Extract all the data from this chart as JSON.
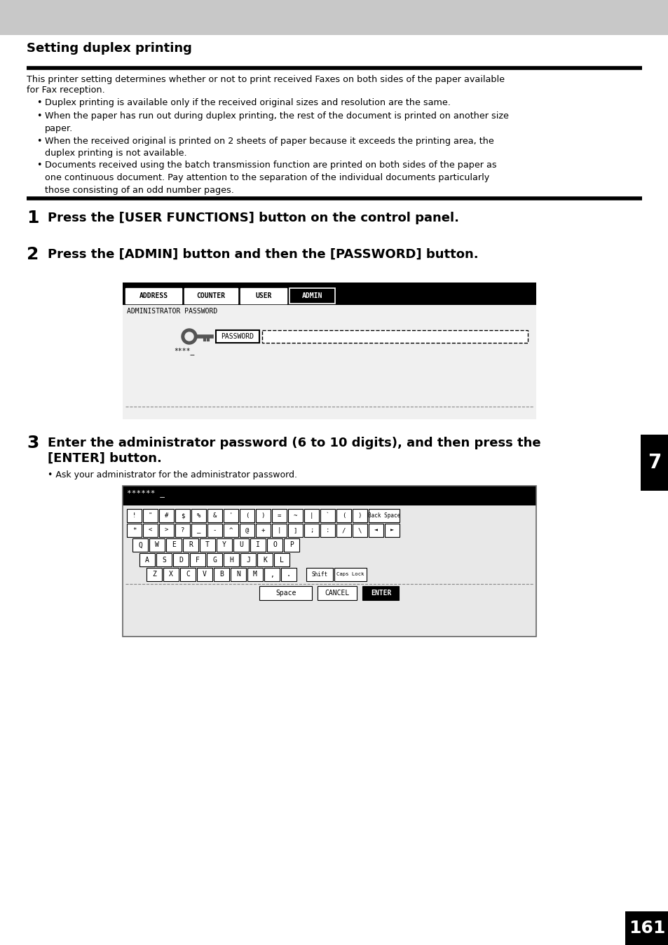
{
  "title": "Setting duplex printing",
  "bg_color": "#ffffff",
  "header_bar_color": "#c8c8c8",
  "body_text1": "This printer setting determines whether or not to print received Faxes on both sides of the paper available",
  "body_text2": "for Fax reception.",
  "bullets": [
    "Duplex printing is available only if the received original sizes and resolution are the same.",
    "When the paper has run out during duplex printing, the rest of the document is printed on another size paper.",
    "When the received original is printed on 2 sheets of paper because it exceeds the printing area, the duplex printing is not available.",
    "Documents received using the batch transmission function are printed on both sides of the paper as one continuous document. Pay attention to the separation of the individual documents particularly those consisting of an odd number pages."
  ],
  "step1_num": "1",
  "step1_text": "Press the [USER FUNCTIONS] button on the control panel.",
  "step2_num": "2",
  "step2_text": "Press the [ADMIN] button and then the [PASSWORD] button.",
  "step3_num": "3",
  "step3_line1": "Enter the administrator password (6 to 10 digits), and then press the",
  "step3_line2": "[ENTER] button.",
  "step3_sub": "Ask your administrator for the administrator password.",
  "page_number": "161",
  "chapter_number": "7",
  "screen1_tabs": [
    "ADDRESS",
    "COUNTER",
    "USER",
    "ADMIN"
  ],
  "screen1_label": "ADMINISTRATOR PASSWORD",
  "screen2_title": "****** _",
  "row1_keys": [
    "!",
    "\"",
    "#",
    "$",
    "%",
    "&",
    "'",
    "(",
    ")",
    "=",
    "~",
    "|",
    "`",
    "(",
    ")"
  ],
  "row2_keys": [
    "*",
    "<",
    ">",
    "?",
    "_",
    "-",
    "^",
    "@",
    "+",
    "|",
    "]",
    ";",
    ":",
    "/",
    "\\"
  ],
  "row3_keys": [
    "Q",
    "W",
    "E",
    "R",
    "T",
    "Y",
    "U",
    "I",
    "O",
    "P"
  ],
  "row4_keys": [
    "A",
    "S",
    "D",
    "F",
    "G",
    "H",
    "J",
    "K",
    "L"
  ],
  "row5_keys": [
    "Z",
    "X",
    "C",
    "V",
    "B",
    "N",
    "M",
    ",",
    "."
  ]
}
